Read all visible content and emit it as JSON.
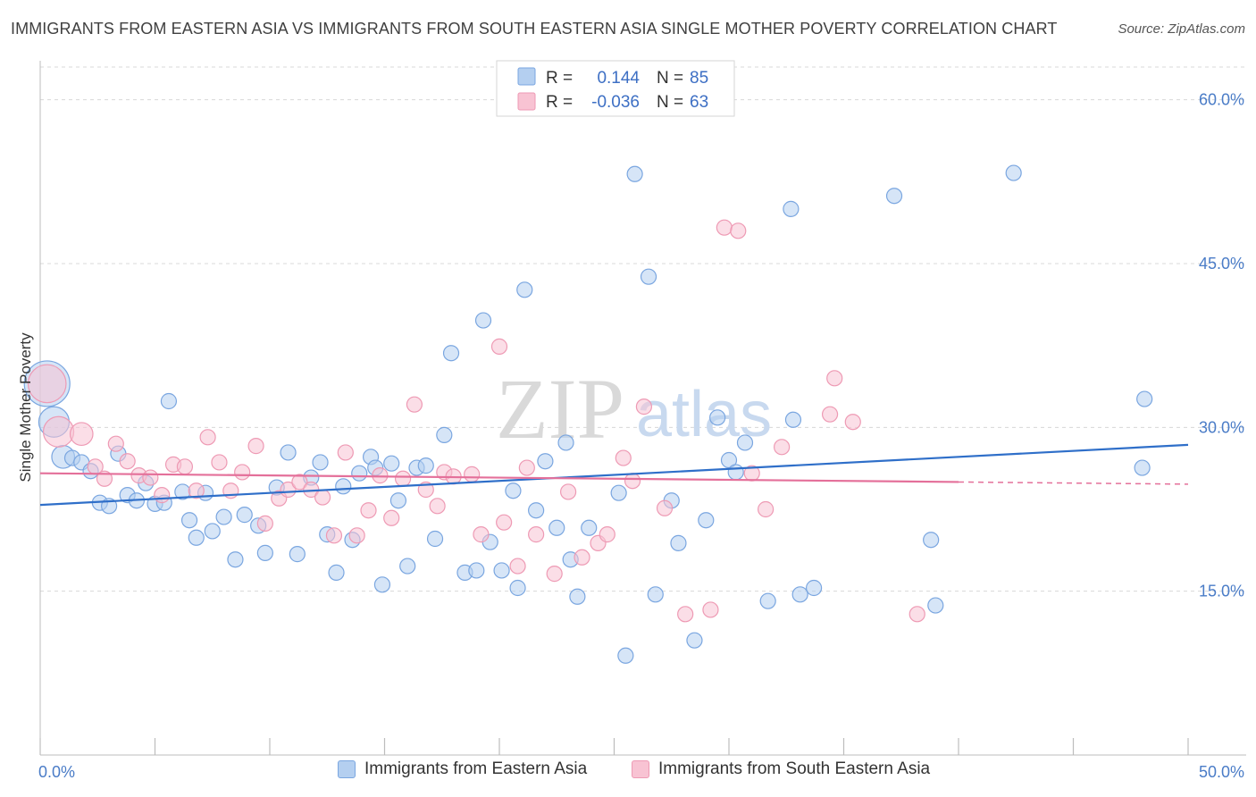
{
  "title": "IMMIGRANTS FROM EASTERN ASIA VS IMMIGRANTS FROM SOUTH EASTERN ASIA SINGLE MOTHER POVERTY CORRELATION CHART",
  "source": "Source: ZipAtlas.com",
  "watermark": {
    "zip": "ZIP",
    "atlas": "atlas"
  },
  "colors": {
    "blue_fill": "#b4cff0",
    "blue_stroke": "#7aa6e0",
    "blue_line": "#2f6fc9",
    "pink_fill": "#f8c3d3",
    "pink_stroke": "#ee9ab4",
    "pink_line": "#e4709a",
    "tick_text": "#4a7cc7",
    "grid": "#d8d8d8"
  },
  "legend": {
    "rows": [
      {
        "r_label": "R =",
        "r_value": "0.144",
        "n_label": "N =",
        "n_value": "85"
      },
      {
        "r_label": "R =",
        "r_value": "-0.036",
        "n_label": "N =",
        "n_value": "63"
      }
    ]
  },
  "chart_data": {
    "type": "scatter",
    "title": "IMMIGRANTS FROM EASTERN ASIA VS IMMIGRANTS FROM SOUTH EASTERN ASIA SINGLE MOTHER POVERTY CORRELATION CHART",
    "xlabel": "",
    "ylabel": "Single Mother Poverty",
    "xlim": [
      0,
      50
    ],
    "ylim": [
      0,
      63
    ],
    "x_tick_labels": [
      "0.0%",
      "50.0%"
    ],
    "y_ticks": [
      15,
      30,
      45,
      60
    ],
    "y_tick_labels": [
      "15.0%",
      "30.0%",
      "45.0%",
      "60.0%"
    ],
    "grid": true,
    "legend_position": "top-center",
    "series": [
      {
        "name": "Immigrants from Eastern Asia",
        "color": "#7aa6e0",
        "trend": {
          "x": [
            0,
            50
          ],
          "y": [
            22.9,
            28.4
          ]
        },
        "points": [
          {
            "x": 0.3,
            "y": 34.0,
            "s": 3
          },
          {
            "x": 0.6,
            "y": 30.5,
            "s": 2
          },
          {
            "x": 1.0,
            "y": 27.3,
            "s": 1.5
          },
          {
            "x": 1.4,
            "y": 27.2
          },
          {
            "x": 1.8,
            "y": 26.8
          },
          {
            "x": 2.2,
            "y": 26.0
          },
          {
            "x": 2.6,
            "y": 23.1
          },
          {
            "x": 3.0,
            "y": 22.8
          },
          {
            "x": 3.4,
            "y": 27.6
          },
          {
            "x": 3.8,
            "y": 23.8
          },
          {
            "x": 4.2,
            "y": 23.3
          },
          {
            "x": 4.6,
            "y": 24.9
          },
          {
            "x": 5.0,
            "y": 23.0
          },
          {
            "x": 5.4,
            "y": 23.1
          },
          {
            "x": 5.6,
            "y": 32.4
          },
          {
            "x": 6.2,
            "y": 24.1
          },
          {
            "x": 6.5,
            "y": 21.5
          },
          {
            "x": 6.8,
            "y": 19.9
          },
          {
            "x": 7.2,
            "y": 24.0
          },
          {
            "x": 7.5,
            "y": 20.5
          },
          {
            "x": 8.0,
            "y": 21.8
          },
          {
            "x": 8.5,
            "y": 17.9
          },
          {
            "x": 8.9,
            "y": 22.0
          },
          {
            "x": 9.5,
            "y": 21.0
          },
          {
            "x": 9.8,
            "y": 18.5
          },
          {
            "x": 10.3,
            "y": 24.5
          },
          {
            "x": 10.8,
            "y": 27.7
          },
          {
            "x": 11.2,
            "y": 18.4
          },
          {
            "x": 11.8,
            "y": 25.4
          },
          {
            "x": 12.2,
            "y": 26.8
          },
          {
            "x": 12.5,
            "y": 20.2
          },
          {
            "x": 12.9,
            "y": 16.7
          },
          {
            "x": 13.2,
            "y": 24.6
          },
          {
            "x": 13.6,
            "y": 19.7
          },
          {
            "x": 13.9,
            "y": 25.8
          },
          {
            "x": 14.4,
            "y": 27.3
          },
          {
            "x": 14.6,
            "y": 26.3
          },
          {
            "x": 14.9,
            "y": 15.6
          },
          {
            "x": 15.3,
            "y": 26.7
          },
          {
            "x": 15.6,
            "y": 23.3
          },
          {
            "x": 16.0,
            "y": 17.3
          },
          {
            "x": 16.4,
            "y": 26.3
          },
          {
            "x": 16.8,
            "y": 26.5
          },
          {
            "x": 17.2,
            "y": 19.8
          },
          {
            "x": 17.6,
            "y": 29.3
          },
          {
            "x": 17.9,
            "y": 36.8
          },
          {
            "x": 18.5,
            "y": 16.7
          },
          {
            "x": 19.0,
            "y": 16.9
          },
          {
            "x": 19.3,
            "y": 39.8
          },
          {
            "x": 19.6,
            "y": 19.5
          },
          {
            "x": 20.1,
            "y": 16.9
          },
          {
            "x": 20.6,
            "y": 24.2
          },
          {
            "x": 20.8,
            "y": 15.3
          },
          {
            "x": 21.1,
            "y": 42.6
          },
          {
            "x": 21.6,
            "y": 22.4
          },
          {
            "x": 22.0,
            "y": 26.9
          },
          {
            "x": 22.5,
            "y": 20.8
          },
          {
            "x": 22.9,
            "y": 28.6
          },
          {
            "x": 23.1,
            "y": 17.9
          },
          {
            "x": 23.4,
            "y": 14.5
          },
          {
            "x": 23.9,
            "y": 20.8
          },
          {
            "x": 25.2,
            "y": 24.0
          },
          {
            "x": 25.5,
            "y": 9.1
          },
          {
            "x": 25.9,
            "y": 53.2
          },
          {
            "x": 26.5,
            "y": 43.8
          },
          {
            "x": 26.8,
            "y": 14.7
          },
          {
            "x": 27.5,
            "y": 23.3
          },
          {
            "x": 27.8,
            "y": 19.4
          },
          {
            "x": 28.5,
            "y": 10.5
          },
          {
            "x": 29.0,
            "y": 21.5
          },
          {
            "x": 29.5,
            "y": 30.9
          },
          {
            "x": 30.0,
            "y": 27.0
          },
          {
            "x": 30.3,
            "y": 25.9
          },
          {
            "x": 30.7,
            "y": 28.6
          },
          {
            "x": 31.7,
            "y": 14.1
          },
          {
            "x": 32.7,
            "y": 50.0
          },
          {
            "x": 32.8,
            "y": 30.7
          },
          {
            "x": 33.1,
            "y": 14.7
          },
          {
            "x": 33.7,
            "y": 15.3
          },
          {
            "x": 37.2,
            "y": 51.2
          },
          {
            "x": 38.8,
            "y": 19.7
          },
          {
            "x": 39.0,
            "y": 13.7
          },
          {
            "x": 42.4,
            "y": 53.3
          },
          {
            "x": 48.0,
            "y": 26.3
          },
          {
            "x": 48.1,
            "y": 32.6
          }
        ]
      },
      {
        "name": "Immigrants from South Eastern Asia",
        "color": "#ee9ab4",
        "trend": {
          "x": [
            0,
            40
          ],
          "y": [
            25.8,
            25.0
          ]
        },
        "trend_dashed": {
          "x": [
            40,
            50
          ],
          "y": [
            25.0,
            24.8
          ]
        },
        "points": [
          {
            "x": 0.3,
            "y": 34.0,
            "s": 2.5
          },
          {
            "x": 0.8,
            "y": 29.6,
            "s": 2
          },
          {
            "x": 1.8,
            "y": 29.4,
            "s": 1.5
          },
          {
            "x": 2.4,
            "y": 26.4
          },
          {
            "x": 2.8,
            "y": 25.3
          },
          {
            "x": 3.3,
            "y": 28.5
          },
          {
            "x": 3.8,
            "y": 26.9
          },
          {
            "x": 4.3,
            "y": 25.6
          },
          {
            "x": 4.8,
            "y": 25.4
          },
          {
            "x": 5.3,
            "y": 23.8
          },
          {
            "x": 5.8,
            "y": 26.6
          },
          {
            "x": 6.3,
            "y": 26.4
          },
          {
            "x": 6.8,
            "y": 24.2
          },
          {
            "x": 7.3,
            "y": 29.1
          },
          {
            "x": 7.8,
            "y": 26.8
          },
          {
            "x": 8.3,
            "y": 24.2
          },
          {
            "x": 8.8,
            "y": 25.9
          },
          {
            "x": 9.4,
            "y": 28.3
          },
          {
            "x": 9.8,
            "y": 21.2
          },
          {
            "x": 10.4,
            "y": 23.5
          },
          {
            "x": 10.8,
            "y": 24.3
          },
          {
            "x": 11.3,
            "y": 25.0
          },
          {
            "x": 11.8,
            "y": 24.3
          },
          {
            "x": 12.3,
            "y": 23.6
          },
          {
            "x": 12.8,
            "y": 20.1
          },
          {
            "x": 13.3,
            "y": 27.7
          },
          {
            "x": 13.8,
            "y": 20.1
          },
          {
            "x": 14.3,
            "y": 22.4
          },
          {
            "x": 14.8,
            "y": 25.6
          },
          {
            "x": 15.3,
            "y": 21.7
          },
          {
            "x": 15.8,
            "y": 25.3
          },
          {
            "x": 16.3,
            "y": 32.1
          },
          {
            "x": 16.8,
            "y": 24.3
          },
          {
            "x": 17.3,
            "y": 22.8
          },
          {
            "x": 17.6,
            "y": 25.9
          },
          {
            "x": 18.0,
            "y": 25.5
          },
          {
            "x": 18.8,
            "y": 25.7
          },
          {
            "x": 19.2,
            "y": 20.2
          },
          {
            "x": 20.0,
            "y": 37.4
          },
          {
            "x": 20.2,
            "y": 21.3
          },
          {
            "x": 20.8,
            "y": 17.3
          },
          {
            "x": 21.2,
            "y": 26.3
          },
          {
            "x": 21.6,
            "y": 20.2
          },
          {
            "x": 22.4,
            "y": 16.6
          },
          {
            "x": 23.0,
            "y": 24.1
          },
          {
            "x": 23.6,
            "y": 18.1
          },
          {
            "x": 24.3,
            "y": 19.4
          },
          {
            "x": 24.7,
            "y": 20.2
          },
          {
            "x": 25.4,
            "y": 27.2
          },
          {
            "x": 25.8,
            "y": 25.1
          },
          {
            "x": 26.3,
            "y": 31.9
          },
          {
            "x": 27.2,
            "y": 22.6
          },
          {
            "x": 28.1,
            "y": 12.9
          },
          {
            "x": 29.2,
            "y": 13.3
          },
          {
            "x": 29.8,
            "y": 48.3
          },
          {
            "x": 30.4,
            "y": 48.0
          },
          {
            "x": 31.0,
            "y": 25.8
          },
          {
            "x": 31.6,
            "y": 22.5
          },
          {
            "x": 32.3,
            "y": 28.2
          },
          {
            "x": 34.4,
            "y": 31.2
          },
          {
            "x": 34.6,
            "y": 34.5
          },
          {
            "x": 35.4,
            "y": 30.5
          },
          {
            "x": 38.2,
            "y": 12.9
          }
        ]
      }
    ]
  },
  "bottom_legend": [
    {
      "label": "Immigrants from Eastern Asia"
    },
    {
      "label": "Immigrants from South Eastern Asia"
    }
  ]
}
